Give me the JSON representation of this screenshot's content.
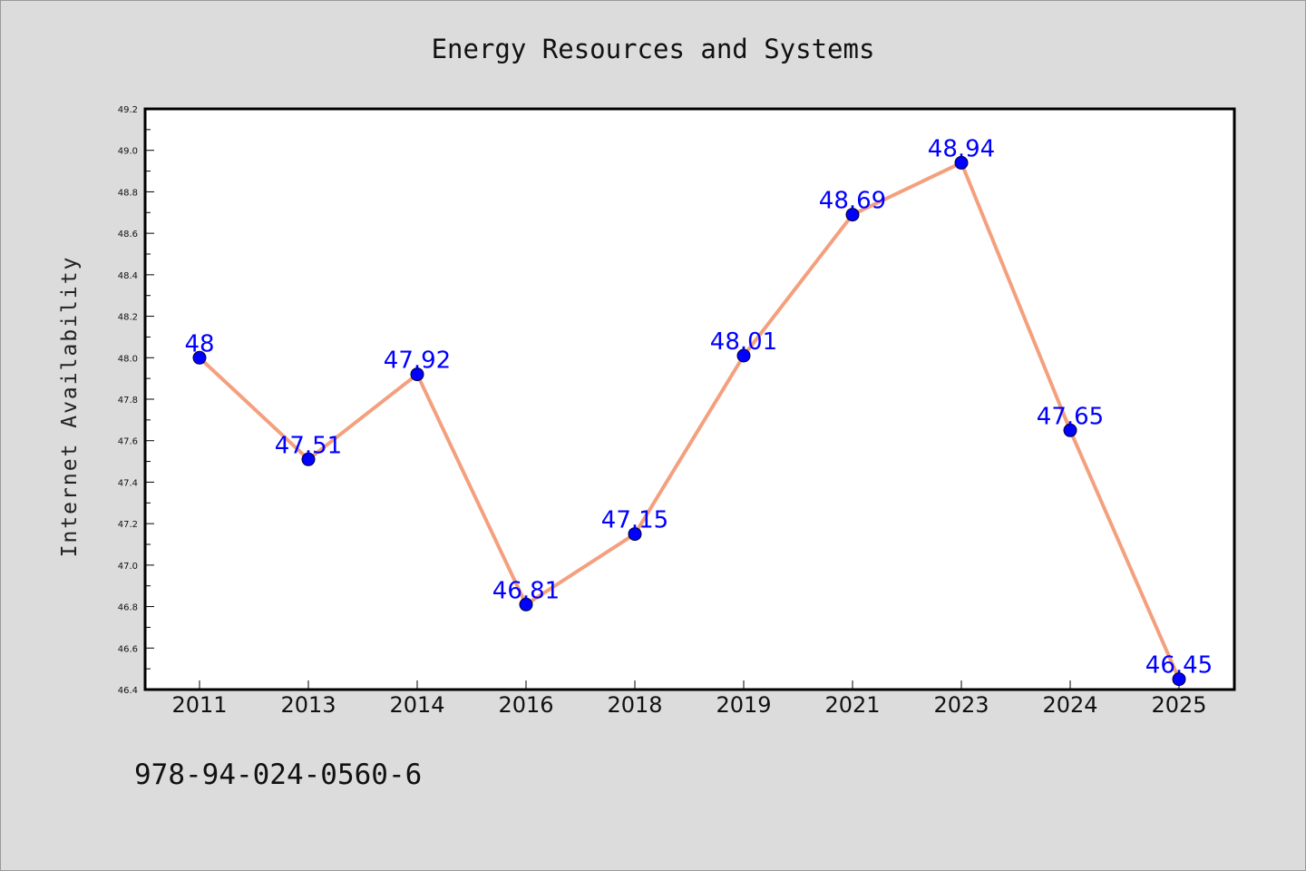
{
  "chart_data": {
    "type": "line",
    "title": "Energy Resources and Systems",
    "xlabel": "",
    "ylabel": "Internet Availability",
    "categories": [
      "2011",
      "2013",
      "2014",
      "2016",
      "2018",
      "2019",
      "2021",
      "2023",
      "2024",
      "2025"
    ],
    "series": [
      {
        "values": [
          48,
          47.51,
          47.92,
          46.81,
          47.15,
          48.01,
          48.69,
          48.94,
          47.65,
          46.45
        ],
        "data_labels": [
          "48",
          "47.51",
          "47.92",
          "46.81",
          "47.15",
          "48.01",
          "48.69",
          "48.94",
          "47.65",
          "46.45"
        ],
        "line_color": "#f4a07e",
        "marker_color": "#0000ff"
      }
    ],
    "ylim": [
      46.4,
      49.2
    ],
    "yticks": [
      "46.4",
      "46.6",
      "46.8",
      "47.0",
      "47.2",
      "47.4",
      "47.6",
      "47.8",
      "48.0",
      "48.2",
      "48.4",
      "48.6",
      "48.8",
      "49.0",
      "49.2"
    ],
    "grid": false,
    "legend": "none",
    "colors": {
      "background": "#dcdcdc",
      "plot_background": "#ffffff",
      "data_label": "#0000ff"
    }
  },
  "footer": {
    "text": "978-94-024-0560-6"
  }
}
